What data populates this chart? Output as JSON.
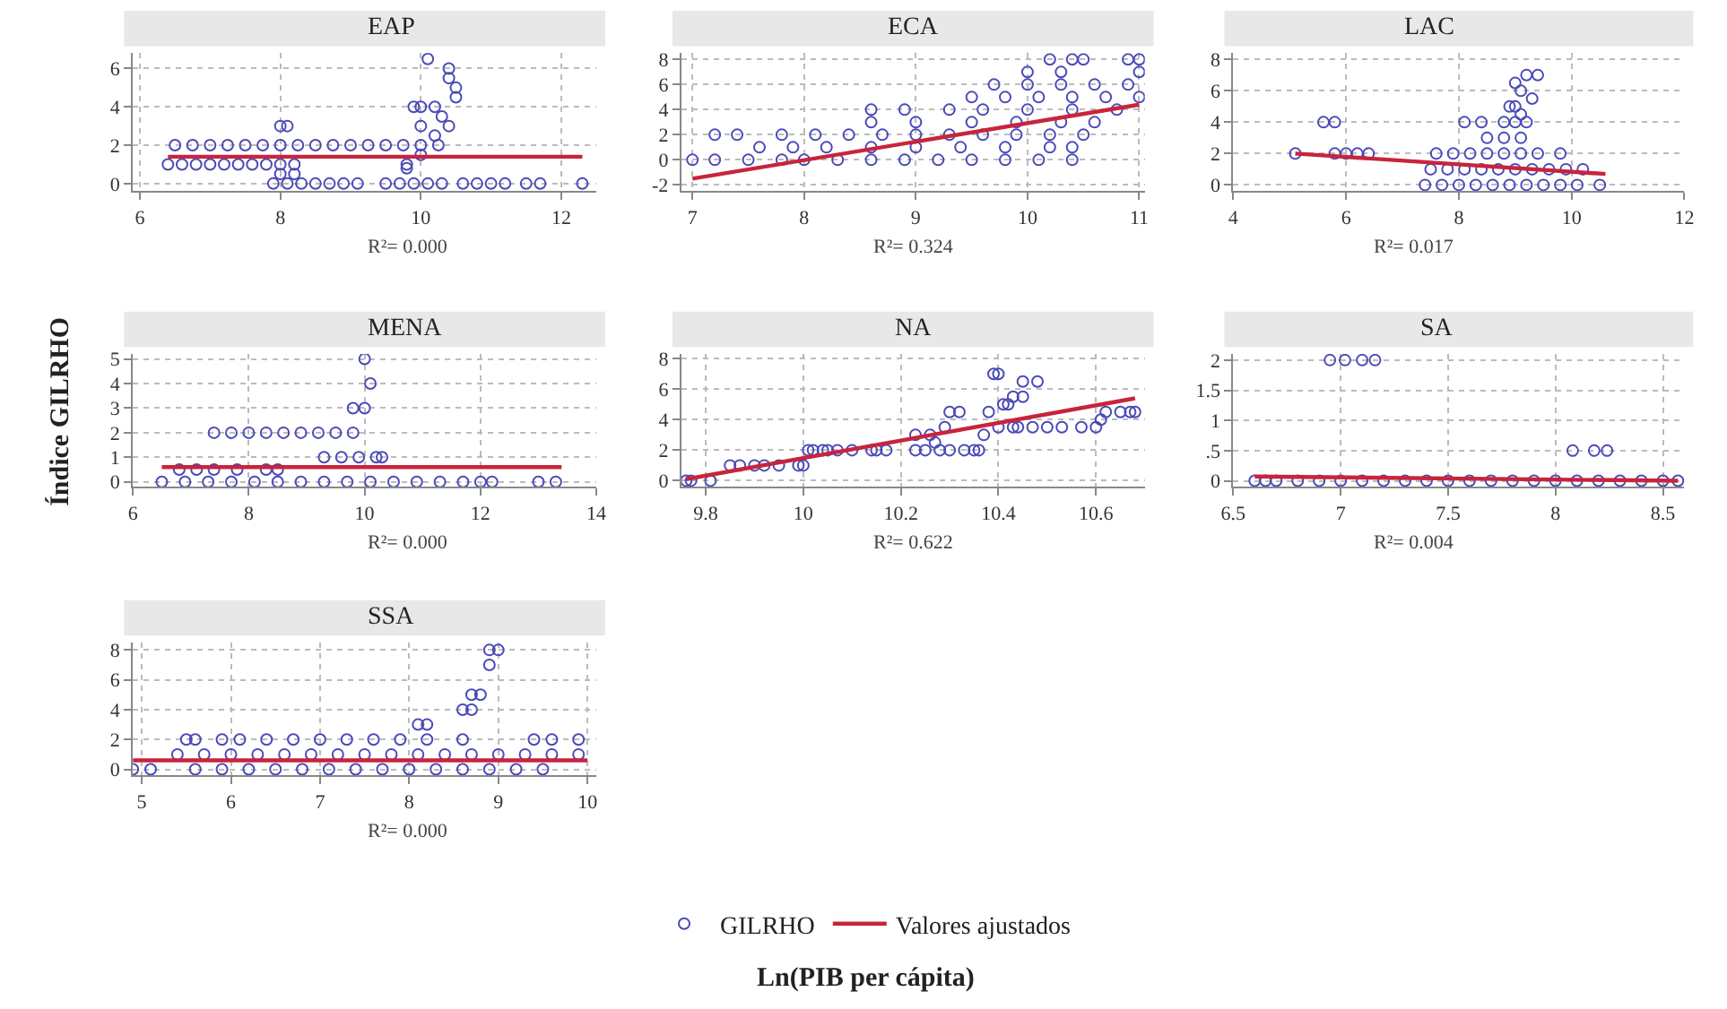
{
  "chart_data": [
    {
      "type": "scatter",
      "title": "EAP",
      "xlabel": "Ln(PIB per cápita)",
      "ylabel": "Índice GILRHO",
      "legend": "bottom",
      "grid": true,
      "annotations": [
        "R²= 0.000"
      ],
      "xlim": [
        5.9,
        12.5
      ],
      "xticks": [
        6,
        8,
        10,
        12
      ],
      "ylim": [
        -0.4,
        6.8
      ],
      "yticks": [
        0,
        2,
        4,
        6
      ],
      "series": [
        {
          "name": "GILRHO",
          "type": "scatter",
          "marker": "circle",
          "color": "#4a4ab8",
          "x": [
            6.5,
            6.75,
            7,
            7.25,
            7.5,
            7.75,
            8,
            8.25,
            8.5,
            8.75,
            9,
            9.25,
            9.5,
            9.75,
            10,
            10.25,
            6.4,
            6.6,
            6.8,
            7,
            7.2,
            7.4,
            7.6,
            7.8,
            8.0,
            8.2,
            9.8,
            7.9,
            8.1,
            8.3,
            8.5,
            8.7,
            8.9,
            9.1,
            9.5,
            9.7,
            9.9,
            10.1,
            10.3,
            10.6,
            10.8,
            11.0,
            11.2,
            11.5,
            11.7,
            12.3,
            8.0,
            8.1,
            10.0,
            9.9,
            10.0,
            10.2,
            10.1,
            10.4,
            10.4,
            10.5,
            10.5,
            10.3,
            10.4,
            10.2,
            8.0,
            8.2,
            9.8,
            10.0
          ],
          "values": [
            2,
            2,
            2,
            2,
            2,
            2,
            2,
            2,
            2,
            2,
            2,
            2,
            2,
            2,
            2,
            2,
            1,
            1,
            1,
            1,
            1,
            1,
            1,
            1,
            1,
            1,
            1,
            0,
            0,
            0,
            0,
            0,
            0,
            0,
            0,
            0,
            0,
            0,
            0,
            0,
            0,
            0,
            0,
            0,
            0,
            0,
            3,
            3,
            3,
            4,
            4,
            4,
            6.5,
            6,
            5.5,
            4.5,
            5,
            3.5,
            3,
            2.5,
            0.5,
            0.5,
            0.8,
            1.5
          ]
        },
        {
          "name": "Valores ajustados",
          "type": "line",
          "color": "#c8243c",
          "x": [
            6.4,
            12.3
          ],
          "values": [
            1.4,
            1.4
          ]
        }
      ]
    },
    {
      "type": "scatter",
      "title": "ECA",
      "grid": true,
      "annotations": [
        "R²= 0.324"
      ],
      "xlim": [
        6.9,
        11.05
      ],
      "xticks": [
        7,
        8,
        9,
        10,
        11
      ],
      "ylim": [
        -2.5,
        8.5
      ],
      "yticks": [
        -2,
        0,
        2,
        4,
        6,
        8
      ],
      "series": [
        {
          "type": "scatter",
          "marker": "circle",
          "color": "#4a4ab8",
          "x": [
            7.0,
            7.2,
            7.5,
            7.8,
            8.0,
            8.3,
            8.6,
            8.9,
            9.2,
            9.5,
            9.8,
            10.1,
            10.4,
            7.6,
            7.9,
            8.2,
            8.6,
            9.0,
            9.4,
            9.8,
            10.2,
            10.4,
            7.2,
            7.4,
            7.8,
            8.1,
            8.4,
            8.7,
            9.0,
            9.3,
            9.6,
            9.9,
            10.2,
            10.5,
            8.6,
            9.0,
            9.5,
            9.9,
            10.3,
            10.6,
            8.6,
            8.9,
            9.3,
            9.6,
            10.0,
            10.4,
            10.8,
            9.5,
            9.8,
            10.1,
            10.4,
            10.7,
            11.0,
            9.7,
            10.0,
            10.3,
            10.6,
            10.9,
            10.0,
            10.3,
            11.0,
            10.2,
            10.4,
            10.5,
            10.9,
            11.0
          ],
          "values": [
            0,
            0,
            0,
            0,
            0,
            0,
            0,
            0,
            0,
            0,
            0,
            0,
            0,
            1,
            1,
            1,
            1,
            1,
            1,
            1,
            1,
            1,
            2,
            2,
            2,
            2,
            2,
            2,
            2,
            2,
            2,
            2,
            2,
            2,
            3,
            3,
            3,
            3,
            3,
            3,
            4,
            4,
            4,
            4,
            4,
            4,
            4,
            5,
            5,
            5,
            5,
            5,
            5,
            6,
            6,
            6,
            6,
            6,
            7,
            7,
            7,
            8,
            8,
            8,
            8,
            8
          ]
        },
        {
          "type": "line",
          "color": "#c8243c",
          "x": [
            7.0,
            11.0
          ],
          "values": [
            -1.5,
            4.4
          ]
        }
      ]
    },
    {
      "type": "scatter",
      "title": "LAC",
      "grid": true,
      "annotations": [
        "R²= 0.017"
      ],
      "xlim": [
        4,
        12
      ],
      "xticks": [
        4,
        6,
        8,
        10,
        12
      ],
      "ylim": [
        -0.4,
        8.4
      ],
      "yticks": [
        0,
        2,
        4,
        6,
        8
      ],
      "series": [
        {
          "type": "scatter",
          "marker": "circle",
          "color": "#4a4ab8",
          "x": [
            7.4,
            7.7,
            8.0,
            8.3,
            8.6,
            8.9,
            9.2,
            9.5,
            9.8,
            10.1,
            10.5,
            7.5,
            7.8,
            8.1,
            8.4,
            8.7,
            9.0,
            9.3,
            9.6,
            9.9,
            10.2,
            5.1,
            5.8,
            6.0,
            6.2,
            6.4,
            7.6,
            7.9,
            8.2,
            8.5,
            8.8,
            9.1,
            9.4,
            9.8,
            8.5,
            8.8,
            9.1,
            5.6,
            5.8,
            8.1,
            8.4,
            8.8,
            9.0,
            9.2,
            8.9,
            9.0,
            9.1,
            9.2,
            9.4,
            9.3,
            9.0,
            9.1
          ],
          "values": [
            0,
            0,
            0,
            0,
            0,
            0,
            0,
            0,
            0,
            0,
            0,
            1,
            1,
            1,
            1,
            1,
            1,
            1,
            1,
            1,
            1,
            2,
            2,
            2,
            2,
            2,
            2,
            2,
            2,
            2,
            2,
            2,
            2,
            2,
            3,
            3,
            3,
            4,
            4,
            4,
            4,
            4,
            4,
            4,
            5,
            5,
            6,
            7,
            7,
            5.5,
            6.5,
            4.5
          ]
        },
        {
          "type": "line",
          "color": "#c8243c",
          "x": [
            5.1,
            10.6
          ],
          "values": [
            2.0,
            0.7
          ]
        }
      ]
    },
    {
      "type": "scatter",
      "title": "MENA",
      "grid": true,
      "annotations": [
        "R²= 0.000"
      ],
      "xlim": [
        6,
        14
      ],
      "xticks": [
        6,
        8,
        10,
        12,
        14
      ],
      "ylim": [
        -0.2,
        5.2
      ],
      "yticks": [
        0,
        1,
        2,
        3,
        4,
        5
      ],
      "series": [
        {
          "type": "scatter",
          "marker": "circle",
          "color": "#4a4ab8",
          "x": [
            6.5,
            6.9,
            7.3,
            7.7,
            8.1,
            8.5,
            8.9,
            9.3,
            9.7,
            10.1,
            10.5,
            10.9,
            11.3,
            11.7,
            12.0,
            12.2,
            13.0,
            13.3,
            6.8,
            7.1,
            7.4,
            7.8,
            8.3,
            8.5,
            9.3,
            9.6,
            9.9,
            10.2,
            10.3,
            7.4,
            7.7,
            8.0,
            8.3,
            8.6,
            8.9,
            9.2,
            9.5,
            9.8,
            9.8,
            10.0,
            10.1,
            10.0
          ],
          "values": [
            0,
            0,
            0,
            0,
            0,
            0,
            0,
            0,
            0,
            0,
            0,
            0,
            0,
            0,
            0,
            0,
            0,
            0,
            0.5,
            0.5,
            0.5,
            0.5,
            0.5,
            0.5,
            1,
            1,
            1,
            1,
            1,
            2,
            2,
            2,
            2,
            2,
            2,
            2,
            2,
            2,
            3,
            3,
            4,
            5
          ]
        },
        {
          "type": "line",
          "color": "#c8243c",
          "x": [
            6.5,
            13.4
          ],
          "values": [
            0.6,
            0.6
          ]
        }
      ]
    },
    {
      "type": "scatter",
      "title": "NA",
      "grid": true,
      "annotations": [
        "R²= 0.622"
      ],
      "xlim": [
        9.75,
        10.7
      ],
      "xticks": [
        9.8,
        10,
        10.2,
        10.4,
        10.6
      ],
      "ylim": [
        -0.4,
        8.3
      ],
      "yticks": [
        0,
        2,
        4,
        6,
        8
      ],
      "series": [
        {
          "type": "scatter",
          "marker": "circle",
          "color": "#4a4ab8",
          "x": [
            9.76,
            9.77,
            9.81,
            9.85,
            9.87,
            9.9,
            9.92,
            9.95,
            9.99,
            10.0,
            10.01,
            10.02,
            10.04,
            10.05,
            10.07,
            10.1,
            10.14,
            10.15,
            10.17,
            10.23,
            10.23,
            10.25,
            10.26,
            10.27,
            10.28,
            10.29,
            10.3,
            10.3,
            10.32,
            10.33,
            10.35,
            10.36,
            10.37,
            10.38,
            10.39,
            10.4,
            10.4,
            10.41,
            10.42,
            10.43,
            10.43,
            10.44,
            10.45,
            10.45,
            10.47,
            10.48,
            10.5,
            10.53,
            10.57,
            10.6,
            10.61,
            10.62,
            10.65,
            10.67,
            10.68
          ],
          "values": [
            0,
            0,
            0,
            1,
            1,
            1,
            1,
            1,
            1,
            1,
            2,
            2,
            2,
            2,
            2,
            2,
            2,
            2,
            2,
            2,
            3,
            2,
            3,
            2.5,
            2,
            3.5,
            4.5,
            2,
            4.5,
            2,
            2,
            2,
            3,
            4.5,
            7,
            7,
            3.5,
            5,
            5,
            5.5,
            3.5,
            3.5,
            5.5,
            6.5,
            3.5,
            6.5,
            3.5,
            3.5,
            3.5,
            3.5,
            4,
            4.5,
            4.5,
            4.5,
            4.5
          ]
        },
        {
          "type": "line",
          "color": "#c8243c",
          "x": [
            9.76,
            10.68
          ],
          "values": [
            0.1,
            5.4
          ]
        }
      ]
    },
    {
      "type": "scatter",
      "title": "SA",
      "grid": true,
      "annotations": [
        "R²= 0.004"
      ],
      "xlim": [
        6.5,
        8.6
      ],
      "xticks": [
        6.5,
        7,
        7.5,
        8,
        8.5
      ],
      "ylim": [
        -0.1,
        2.1
      ],
      "yticks": [
        0,
        {
          "value": 0.5,
          "label": ".5"
        },
        1,
        1.5,
        2
      ],
      "series": [
        {
          "type": "scatter",
          "marker": "circle",
          "color": "#4a4ab8",
          "x": [
            6.6,
            6.65,
            6.7,
            6.8,
            6.9,
            7.0,
            7.1,
            7.2,
            7.3,
            7.4,
            7.5,
            7.6,
            7.7,
            7.8,
            7.9,
            8.0,
            8.1,
            8.2,
            8.3,
            8.4,
            8.5,
            8.57,
            6.95,
            7.02,
            7.1,
            7.16,
            8.08,
            8.18,
            8.24
          ],
          "values": [
            0,
            0,
            0,
            0,
            0,
            0,
            0,
            0,
            0,
            0,
            0,
            0,
            0,
            0,
            0,
            0,
            0,
            0,
            0,
            0,
            0,
            0,
            2,
            2,
            2,
            2,
            0.5,
            0.5,
            0.5
          ]
        },
        {
          "type": "line",
          "color": "#c8243c",
          "x": [
            6.6,
            8.57
          ],
          "values": [
            0.07,
            0.0
          ]
        }
      ]
    },
    {
      "type": "scatter",
      "title": "SSA",
      "grid": true,
      "annotations": [
        "R²= 0.000"
      ],
      "xlim": [
        4.9,
        10.1
      ],
      "xticks": [
        5,
        6,
        7,
        8,
        9,
        10
      ],
      "ylim": [
        -0.4,
        8.5
      ],
      "yticks": [
        0,
        2,
        4,
        6,
        8
      ],
      "series": [
        {
          "type": "scatter",
          "marker": "circle",
          "color": "#4a4ab8",
          "x": [
            4.9,
            5.1,
            5.6,
            5.9,
            6.2,
            6.5,
            6.8,
            7.1,
            7.4,
            7.7,
            8.0,
            8.3,
            8.6,
            8.9,
            9.2,
            9.5,
            5.4,
            5.7,
            6.0,
            6.3,
            6.6,
            6.9,
            7.2,
            7.5,
            7.8,
            8.1,
            8.4,
            8.7,
            9.0,
            9.3,
            9.6,
            9.9,
            5.5,
            5.6,
            5.9,
            6.1,
            6.4,
            6.7,
            7.0,
            7.3,
            7.6,
            7.9,
            8.2,
            8.6,
            9.4,
            9.6,
            9.9,
            8.1,
            8.2,
            8.6,
            8.7,
            8.7,
            8.8,
            8.9,
            8.9,
            9.0
          ],
          "values": [
            0,
            0,
            0,
            0,
            0,
            0,
            0,
            0,
            0,
            0,
            0,
            0,
            0,
            0,
            0,
            0,
            1,
            1,
            1,
            1,
            1,
            1,
            1,
            1,
            1,
            1,
            1,
            1,
            1,
            1,
            1,
            1,
            2,
            2,
            2,
            2,
            2,
            2,
            2,
            2,
            2,
            2,
            2,
            2,
            2,
            2,
            2,
            3,
            3,
            4,
            4,
            5,
            5,
            7,
            8,
            8
          ]
        },
        {
          "type": "line",
          "color": "#c8243c",
          "x": [
            4.9,
            10.0
          ],
          "values": [
            0.6,
            0.6
          ]
        }
      ]
    }
  ]
}
